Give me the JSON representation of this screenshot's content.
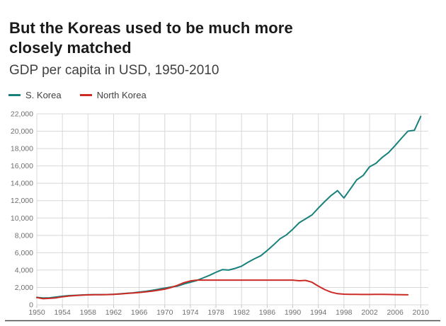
{
  "header": {
    "title_line1": "But the Koreas used to be much more",
    "title_line2": "closely matched",
    "subtitle": "GDP per capita in USD, 1950-2010"
  },
  "legend": [
    {
      "label": "S. Korea",
      "color": "#19817b"
    },
    {
      "label": "North Korea",
      "color": "#cc2a25"
    }
  ],
  "chart_data": {
    "type": "line",
    "title": "But the Koreas used to be much more closely matched",
    "subtitle": "GDP per capita in USD, 1950-2010",
    "xlabel": "",
    "ylabel": "",
    "xlim": [
      1950,
      2010
    ],
    "ylim": [
      0,
      22000
    ],
    "grid": true,
    "legend_position": "top-left",
    "x_ticks": [
      1950,
      1954,
      1958,
      1962,
      1966,
      1970,
      1974,
      1978,
      1982,
      1986,
      1990,
      1994,
      1998,
      2002,
      2006,
      2010
    ],
    "y_ticks": [
      0,
      2000,
      4000,
      6000,
      8000,
      10000,
      12000,
      14000,
      16000,
      18000,
      20000,
      22000
    ],
    "series": [
      {
        "name": "S. Korea",
        "color": "#19817b",
        "start_year": 1950,
        "values": [
          854,
          780,
          810,
          900,
          990,
          1060,
          1090,
          1130,
          1160,
          1170,
          1175,
          1185,
          1210,
          1260,
          1320,
          1380,
          1470,
          1550,
          1660,
          1790,
          1920,
          2050,
          2150,
          2400,
          2600,
          2800,
          3100,
          3400,
          3750,
          4050,
          4000,
          4200,
          4450,
          4900,
          5300,
          5650,
          6250,
          6900,
          7600,
          8050,
          8700,
          9450,
          9900,
          10350,
          11150,
          11900,
          12600,
          13150,
          12300,
          13350,
          14400,
          14900,
          15900,
          16300,
          17000,
          17550,
          18350,
          19200,
          20000,
          20100,
          21700
        ]
      },
      {
        "name": "North Korea",
        "color": "#cc2a25",
        "start_year": 1950,
        "values": [
          830,
          700,
          740,
          800,
          920,
          1010,
          1060,
          1110,
          1140,
          1155,
          1165,
          1175,
          1200,
          1250,
          1300,
          1355,
          1420,
          1490,
          1570,
          1680,
          1800,
          2000,
          2250,
          2550,
          2750,
          2841,
          2841,
          2841,
          2841,
          2841,
          2841,
          2841,
          2841,
          2841,
          2841,
          2841,
          2841,
          2841,
          2841,
          2841,
          2841,
          2770,
          2810,
          2600,
          2150,
          1750,
          1450,
          1280,
          1220,
          1205,
          1195,
          1190,
          1190,
          1195,
          1195,
          1190,
          1175,
          1160,
          1150
        ]
      }
    ]
  }
}
